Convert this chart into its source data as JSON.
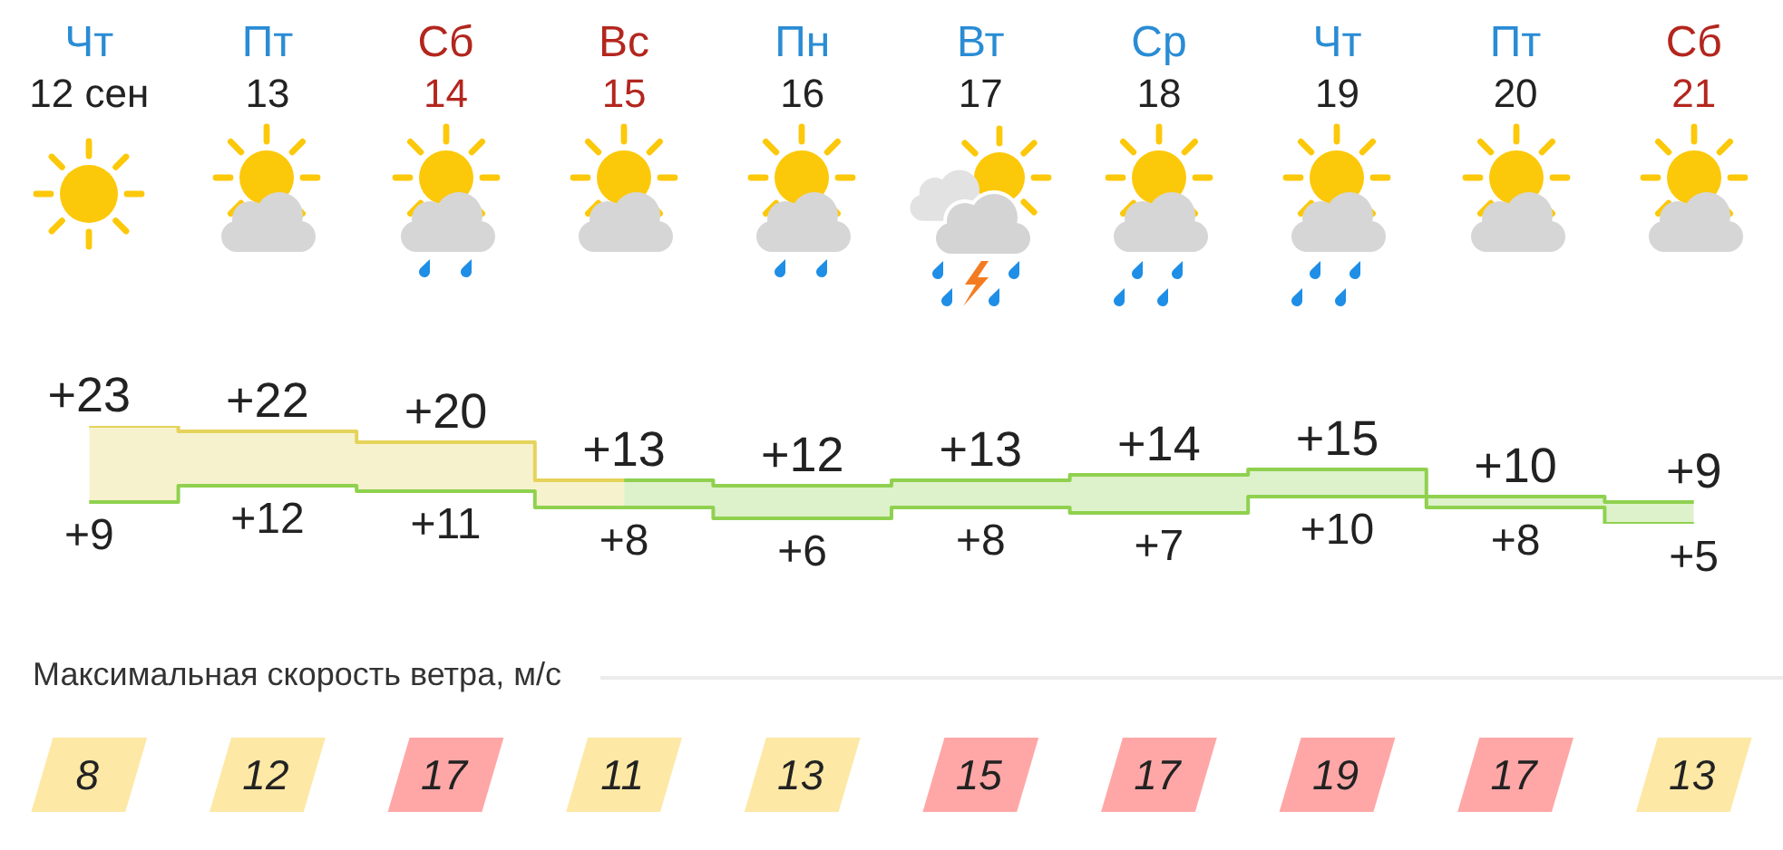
{
  "chart_data": [
    {
      "type": "step",
      "categories": [
        "Чт\n12 сен",
        "Пт\n13",
        "Сб\n14",
        "Вс\n15",
        "Пн\n16",
        "Вт\n17",
        "Ср\n18",
        "Чт\n19",
        "Пт\n20",
        "Сб\n21"
      ],
      "series": [
        {
          "color": "#e5d35a",
          "values": [
            23,
            22,
            20,
            13,
            null,
            null,
            null,
            null,
            null,
            null
          ],
          "value_labels": [
            "+23",
            "+22",
            "+20",
            null,
            null,
            null,
            null,
            null,
            null,
            null
          ],
          "lower": [
            9,
            12,
            11,
            8,
            null,
            null,
            null,
            null,
            null,
            null
          ],
          "upper": [
            23,
            22,
            20,
            13,
            null,
            null,
            null,
            null,
            null,
            null
          ]
        },
        {
          "color": "#8fd14f",
          "values": [
            null,
            null,
            null,
            13,
            12,
            13,
            14,
            15,
            10,
            9
          ],
          "value_labels": [
            null,
            null,
            null,
            "+13",
            "+12",
            "+13",
            "+14",
            "+15",
            "+10",
            "+9"
          ],
          "lower": [
            null,
            null,
            null,
            8,
            6,
            8,
            7,
            10,
            8,
            5
          ],
          "upper": [
            null,
            null,
            null,
            13,
            12,
            13,
            14,
            15,
            10,
            9
          ]
        },
        {
          "color": "#8fd14f",
          "values": [
            9,
            12,
            11,
            8,
            6,
            8,
            7,
            10,
            8,
            5
          ],
          "value_labels": [
            "+9",
            "+12",
            "+11",
            "+8",
            "+6",
            "+8",
            "+7",
            "+10",
            "+8",
            "+5"
          ]
        }
      ],
      "tick_labels": "x"
    },
    {
      "type": "other",
      "title": "Максимальная скорость ветра, м/с",
      "categories": [
        null,
        null,
        null,
        null,
        null,
        null,
        null,
        null,
        null,
        null
      ],
      "values": [
        8,
        12,
        17,
        11,
        13,
        15,
        17,
        19,
        17,
        13
      ],
      "data_labels": true
    }
  ]
}
